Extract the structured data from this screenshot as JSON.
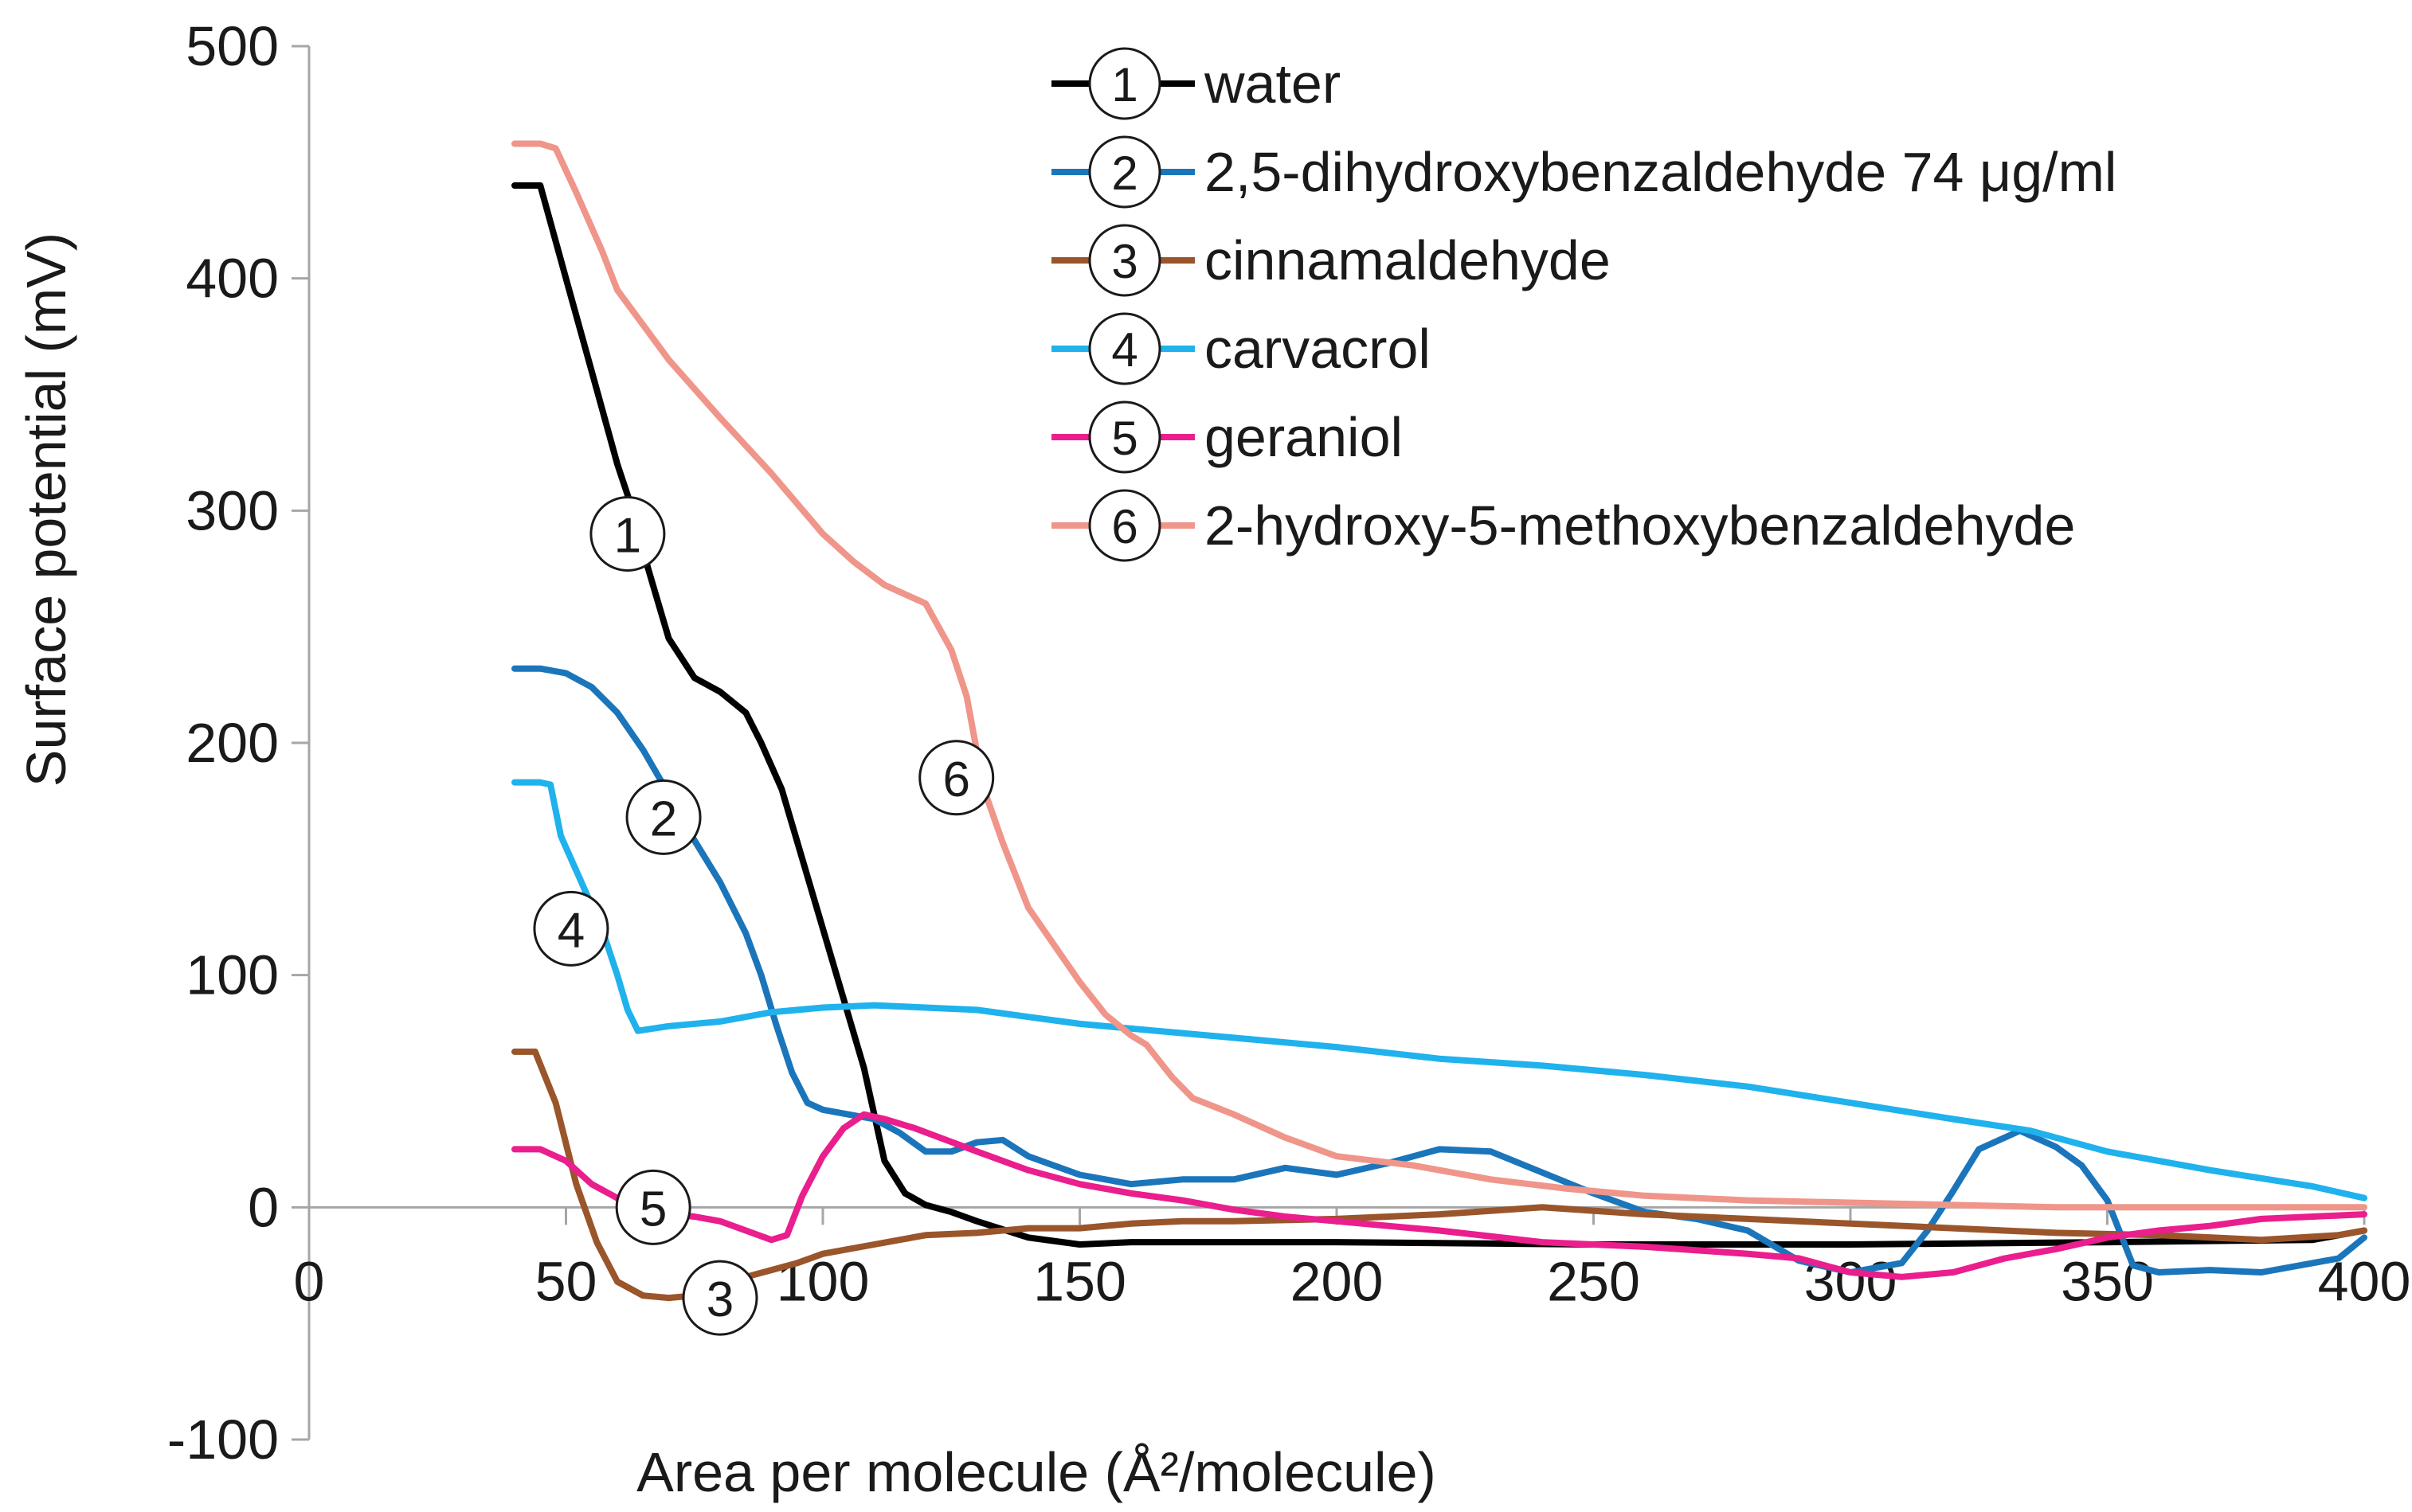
{
  "chart_data": {
    "type": "line",
    "title": "",
    "xlabel": "Area per molecule (Å²/molecule)",
    "ylabel": "Surface potential (mV)",
    "xlim": [
      0,
      400
    ],
    "ylim": [
      -100,
      500
    ],
    "x_ticks": [
      0,
      50,
      100,
      150,
      200,
      250,
      300,
      350,
      400
    ],
    "y_ticks": [
      -100,
      0,
      100,
      200,
      300,
      400,
      500
    ],
    "grid": false,
    "legend_position": "top-right",
    "series": [
      {
        "id": "1",
        "name": "water",
        "color": "#000000",
        "points": [
          [
            40,
            440
          ],
          [
            45,
            440
          ],
          [
            50,
            400
          ],
          [
            55,
            360
          ],
          [
            60,
            320
          ],
          [
            63,
            300
          ],
          [
            66,
            275
          ],
          [
            70,
            245
          ],
          [
            75,
            228
          ],
          [
            80,
            222
          ],
          [
            85,
            213
          ],
          [
            88,
            200
          ],
          [
            92,
            180
          ],
          [
            96,
            150
          ],
          [
            100,
            120
          ],
          [
            104,
            90
          ],
          [
            108,
            60
          ],
          [
            112,
            20
          ],
          [
            116,
            6
          ],
          [
            120,
            1
          ],
          [
            125,
            -2
          ],
          [
            130,
            -6
          ],
          [
            140,
            -13
          ],
          [
            150,
            -16
          ],
          [
            160,
            -15
          ],
          [
            200,
            -15
          ],
          [
            250,
            -16
          ],
          [
            300,
            -16
          ],
          [
            350,
            -15
          ],
          [
            390,
            -14
          ],
          [
            400,
            -10
          ]
        ]
      },
      {
        "id": "2",
        "name": "2,5-dihydroxybenzaldehyde 74 μg/ml",
        "color": "#1b75bb",
        "points": [
          [
            40,
            232
          ],
          [
            45,
            232
          ],
          [
            50,
            230
          ],
          [
            55,
            224
          ],
          [
            60,
            213
          ],
          [
            65,
            197
          ],
          [
            70,
            178
          ],
          [
            75,
            158
          ],
          [
            80,
            140
          ],
          [
            85,
            118
          ],
          [
            88,
            100
          ],
          [
            91,
            78
          ],
          [
            94,
            58
          ],
          [
            97,
            45
          ],
          [
            100,
            42
          ],
          [
            105,
            40
          ],
          [
            110,
            38
          ],
          [
            115,
            32
          ],
          [
            120,
            24
          ],
          [
            125,
            24
          ],
          [
            130,
            28
          ],
          [
            135,
            29
          ],
          [
            140,
            22
          ],
          [
            150,
            14
          ],
          [
            160,
            10
          ],
          [
            170,
            12
          ],
          [
            180,
            12
          ],
          [
            190,
            17
          ],
          [
            200,
            14
          ],
          [
            210,
            19
          ],
          [
            220,
            25
          ],
          [
            230,
            24
          ],
          [
            240,
            15
          ],
          [
            250,
            6
          ],
          [
            260,
            -2
          ],
          [
            270,
            -5
          ],
          [
            280,
            -10
          ],
          [
            290,
            -23
          ],
          [
            300,
            -28
          ],
          [
            310,
            -24
          ],
          [
            315,
            -10
          ],
          [
            320,
            7
          ],
          [
            325,
            25
          ],
          [
            333,
            33
          ],
          [
            340,
            26
          ],
          [
            345,
            18
          ],
          [
            350,
            3
          ],
          [
            355,
            -25
          ],
          [
            360,
            -28
          ],
          [
            370,
            -27
          ],
          [
            380,
            -28
          ],
          [
            390,
            -24
          ],
          [
            395,
            -22
          ],
          [
            400,
            -13
          ]
        ]
      },
      {
        "id": "3",
        "name": "cinnamaldehyde",
        "color": "#9a552b",
        "points": [
          [
            40,
            67
          ],
          [
            44,
            67
          ],
          [
            48,
            45
          ],
          [
            52,
            10
          ],
          [
            56,
            -15
          ],
          [
            60,
            -32
          ],
          [
            65,
            -38
          ],
          [
            70,
            -39
          ],
          [
            75,
            -38
          ],
          [
            80,
            -36
          ],
          [
            85,
            -30
          ],
          [
            90,
            -27
          ],
          [
            95,
            -24
          ],
          [
            100,
            -20
          ],
          [
            110,
            -16
          ],
          [
            120,
            -12
          ],
          [
            130,
            -11
          ],
          [
            140,
            -9
          ],
          [
            150,
            -9
          ],
          [
            160,
            -7
          ],
          [
            170,
            -6
          ],
          [
            180,
            -6
          ],
          [
            200,
            -5
          ],
          [
            220,
            -3
          ],
          [
            240,
            0
          ],
          [
            260,
            -3
          ],
          [
            280,
            -5
          ],
          [
            300,
            -7
          ],
          [
            320,
            -9
          ],
          [
            340,
            -11
          ],
          [
            360,
            -12
          ],
          [
            380,
            -14
          ],
          [
            395,
            -12
          ],
          [
            400,
            -10
          ]
        ]
      },
      {
        "id": "4",
        "name": "carvacrol",
        "color": "#1fb2ec",
        "points": [
          [
            40,
            183
          ],
          [
            45,
            183
          ],
          [
            47,
            182
          ],
          [
            49,
            160
          ],
          [
            53,
            140
          ],
          [
            57,
            120
          ],
          [
            60,
            100
          ],
          [
            62,
            85
          ],
          [
            64,
            76
          ],
          [
            70,
            78
          ],
          [
            80,
            80
          ],
          [
            90,
            84
          ],
          [
            100,
            86
          ],
          [
            110,
            87
          ],
          [
            120,
            86
          ],
          [
            130,
            85
          ],
          [
            140,
            82
          ],
          [
            150,
            79
          ],
          [
            160,
            77
          ],
          [
            170,
            75
          ],
          [
            180,
            73
          ],
          [
            200,
            69
          ],
          [
            220,
            64
          ],
          [
            240,
            61
          ],
          [
            260,
            57
          ],
          [
            280,
            52
          ],
          [
            300,
            45
          ],
          [
            320,
            38
          ],
          [
            335,
            33
          ],
          [
            350,
            24
          ],
          [
            370,
            16
          ],
          [
            390,
            9
          ],
          [
            400,
            4
          ]
        ]
      },
      {
        "id": "5",
        "name": "geraniol",
        "color": "#ea1e8c",
        "points": [
          [
            40,
            25
          ],
          [
            45,
            25
          ],
          [
            50,
            20
          ],
          [
            55,
            10
          ],
          [
            60,
            4
          ],
          [
            65,
            0
          ],
          [
            70,
            -3
          ],
          [
            75,
            -4
          ],
          [
            80,
            -6
          ],
          [
            85,
            -10
          ],
          [
            90,
            -14
          ],
          [
            93,
            -12
          ],
          [
            96,
            5
          ],
          [
            100,
            22
          ],
          [
            104,
            34
          ],
          [
            108,
            40
          ],
          [
            112,
            38
          ],
          [
            118,
            34
          ],
          [
            130,
            24
          ],
          [
            140,
            16
          ],
          [
            150,
            10
          ],
          [
            160,
            6
          ],
          [
            170,
            3
          ],
          [
            180,
            -1
          ],
          [
            190,
            -4
          ],
          [
            200,
            -6
          ],
          [
            220,
            -10
          ],
          [
            240,
            -15
          ],
          [
            260,
            -17
          ],
          [
            280,
            -20
          ],
          [
            290,
            -22
          ],
          [
            300,
            -28
          ],
          [
            310,
            -30
          ],
          [
            320,
            -28
          ],
          [
            330,
            -22
          ],
          [
            340,
            -18
          ],
          [
            350,
            -13
          ],
          [
            360,
            -10
          ],
          [
            370,
            -8
          ],
          [
            380,
            -5
          ],
          [
            390,
            -4
          ],
          [
            400,
            -3
          ]
        ]
      },
      {
        "id": "6",
        "name": "2-hydroxy-5-methoxybenzaldehyde",
        "color": "#f0958a",
        "points": [
          [
            40,
            458
          ],
          [
            45,
            458
          ],
          [
            48,
            456
          ],
          [
            52,
            437
          ],
          [
            57,
            412
          ],
          [
            60,
            395
          ],
          [
            65,
            380
          ],
          [
            70,
            365
          ],
          [
            80,
            340
          ],
          [
            90,
            316
          ],
          [
            100,
            290
          ],
          [
            106,
            278
          ],
          [
            112,
            268
          ],
          [
            117,
            263
          ],
          [
            120,
            260
          ],
          [
            125,
            240
          ],
          [
            128,
            220
          ],
          [
            130,
            196
          ],
          [
            132,
            176
          ],
          [
            135,
            157
          ],
          [
            140,
            129
          ],
          [
            150,
            97
          ],
          [
            155,
            83
          ],
          [
            160,
            74
          ],
          [
            163,
            70
          ],
          [
            168,
            56
          ],
          [
            172,
            47
          ],
          [
            180,
            40
          ],
          [
            190,
            30
          ],
          [
            200,
            22
          ],
          [
            215,
            18
          ],
          [
            230,
            12
          ],
          [
            245,
            8
          ],
          [
            260,
            5
          ],
          [
            280,
            3
          ],
          [
            300,
            2
          ],
          [
            320,
            1
          ],
          [
            340,
            0
          ],
          [
            360,
            0
          ],
          [
            380,
            0
          ],
          [
            400,
            0
          ]
        ]
      }
    ],
    "labels": [
      {
        "id": "1",
        "text": "1",
        "x": 62,
        "y": 290
      },
      {
        "id": "2",
        "text": "2",
        "x": 69,
        "y": 168
      },
      {
        "id": "3",
        "text": "3",
        "x": 80,
        "y": -39
      },
      {
        "id": "4",
        "text": "4",
        "x": 51,
        "y": 120
      },
      {
        "id": "5",
        "text": "5",
        "x": 67,
        "y": 0
      },
      {
        "id": "6",
        "text": "6",
        "x": 126,
        "y": 185
      }
    ],
    "legend_marker_labels": [
      "1",
      "2",
      "3",
      "4",
      "5",
      "6"
    ]
  }
}
